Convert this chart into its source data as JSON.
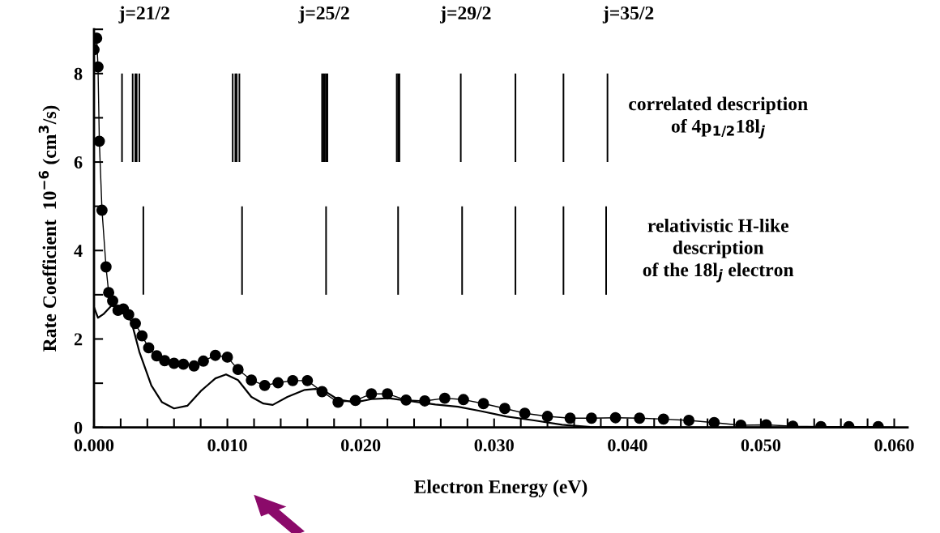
{
  "chart_data": {
    "type": "line",
    "xlabel": "Electron Energy (eV)",
    "ylabel": "Rate Coefficient  10$^{−6}$ (cm$^{3}$/s)",
    "xlim": [
      0,
      0.061
    ],
    "ylim": [
      0,
      9
    ],
    "xticks": [
      {
        "value": 0,
        "label": "0.000"
      },
      {
        "value": 0.002,
        "label": null
      },
      {
        "value": 0.004,
        "label": null
      },
      {
        "value": 0.006,
        "label": null
      },
      {
        "value": 0.008,
        "label": null
      },
      {
        "value": 0.01,
        "label": "0.010"
      },
      {
        "value": 0.012,
        "label": null
      },
      {
        "value": 0.014,
        "label": null
      },
      {
        "value": 0.016,
        "label": null
      },
      {
        "value": 0.018,
        "label": null
      },
      {
        "value": 0.02,
        "label": "0.020"
      },
      {
        "value": 0.022,
        "label": null
      },
      {
        "value": 0.024,
        "label": null
      },
      {
        "value": 0.026,
        "label": null
      },
      {
        "value": 0.028,
        "label": null
      },
      {
        "value": 0.03,
        "label": "0.030"
      },
      {
        "value": 0.032,
        "label": null
      },
      {
        "value": 0.034,
        "label": null
      },
      {
        "value": 0.036,
        "label": null
      },
      {
        "value": 0.038,
        "label": null
      },
      {
        "value": 0.04,
        "label": "0.040"
      },
      {
        "value": 0.042,
        "label": null
      },
      {
        "value": 0.044,
        "label": null
      },
      {
        "value": 0.046,
        "label": null
      },
      {
        "value": 0.048,
        "label": null
      },
      {
        "value": 0.05,
        "label": "0.050"
      },
      {
        "value": 0.052,
        "label": null
      },
      {
        "value": 0.054,
        "label": null
      },
      {
        "value": 0.056,
        "label": null
      },
      {
        "value": 0.058,
        "label": null
      },
      {
        "value": 0.06,
        "label": "0.060"
      }
    ],
    "yticks": [
      0,
      {
        "value": 1,
        "label": null
      },
      2,
      {
        "value": 3,
        "label": null
      },
      4,
      {
        "value": 5,
        "label": null
      },
      6,
      {
        "value": 7,
        "label": null
      },
      8,
      {
        "value": 9,
        "label": null
      }
    ],
    "grid": false,
    "legend": false,
    "annotations": [
      "j=21/2",
      "j=25/2",
      "j=29/2",
      "j=35/2"
    ],
    "series": [
      {
        "color": "#000000",
        "marker": "circle",
        "line_style": "solid",
        "x": [
          0.0,
          0.0002,
          0.0003,
          0.0004,
          0.0006,
          0.0009,
          0.0011,
          0.0014,
          0.0018,
          0.0022,
          0.0026,
          0.0031,
          0.0036,
          0.0041,
          0.0047,
          0.0053,
          0.006,
          0.0067,
          0.0075,
          0.0082,
          0.0091,
          0.01,
          0.0108,
          0.0118,
          0.0128,
          0.0138,
          0.0149,
          0.016,
          0.0171,
          0.0183,
          0.0196,
          0.0208,
          0.022,
          0.0234,
          0.0248,
          0.0263,
          0.0277,
          0.0292,
          0.0308,
          0.0323,
          0.034,
          0.0357,
          0.0373,
          0.0391,
          0.0409,
          0.0427,
          0.0446,
          0.0465,
          0.0485,
          0.0504,
          0.0524,
          0.0545,
          0.0566,
          0.0588
        ],
        "values": [
          8.54,
          8.8,
          8.15,
          6.47,
          4.91,
          3.63,
          3.05,
          2.86,
          2.65,
          2.68,
          2.55,
          2.35,
          2.07,
          1.8,
          1.62,
          1.51,
          1.45,
          1.43,
          1.39,
          1.5,
          1.63,
          1.59,
          1.31,
          1.07,
          0.95,
          1.01,
          1.06,
          1.06,
          0.81,
          0.57,
          0.61,
          0.76,
          0.76,
          0.62,
          0.6,
          0.66,
          0.63,
          0.54,
          0.43,
          0.32,
          0.25,
          0.21,
          0.21,
          0.22,
          0.21,
          0.19,
          0.16,
          0.11,
          0.05,
          0.06,
          0.03,
          0.02,
          0.02,
          0.02
        ]
      },
      {
        "color": "#000000",
        "marker": "none",
        "line_style": "solid",
        "x": [
          0.0,
          0.0003,
          0.0007,
          0.0013,
          0.002,
          0.0028,
          0.0034,
          0.0043,
          0.0051,
          0.006,
          0.007,
          0.008,
          0.0091,
          0.0099,
          0.0108,
          0.0118,
          0.0127,
          0.0134,
          0.0145,
          0.0158,
          0.0166,
          0.0173,
          0.0183,
          0.0196,
          0.0208,
          0.0221,
          0.0236,
          0.0256,
          0.0273,
          0.029,
          0.0309,
          0.033,
          0.0351,
          0.0372,
          0.045,
          0.06
        ],
        "values": [
          2.72,
          2.48,
          2.56,
          2.75,
          2.7,
          2.4,
          1.71,
          0.95,
          0.57,
          0.43,
          0.49,
          0.82,
          1.11,
          1.2,
          1.07,
          0.69,
          0.54,
          0.51,
          0.69,
          0.85,
          0.87,
          0.82,
          0.63,
          0.57,
          0.64,
          0.66,
          0.6,
          0.52,
          0.47,
          0.37,
          0.25,
          0.16,
          0.06,
          0.01,
          0.0,
          0.0
        ]
      },
      {
        "type": "bar",
        "name": "correlated description\nof 4p$_{1/2}$18l$_{j}$",
        "color": "#000000",
        "x": [
          0.0021,
          0.0029,
          0.0031,
          0.0032,
          0.0034,
          0.0104,
          0.0106,
          0.0107,
          0.0109,
          0.0171,
          0.0172,
          0.0173,
          0.0174,
          0.0175,
          0.0227,
          0.0228,
          0.0229,
          0.0275,
          0.0316,
          0.0352,
          0.0385
        ],
        "base": [
          6,
          6,
          6,
          6,
          6,
          6,
          6,
          6,
          6,
          6,
          6,
          6,
          6,
          6,
          6,
          6,
          6,
          6,
          6,
          6,
          6
        ],
        "values": [
          2,
          2,
          2,
          2,
          2,
          2,
          2,
          2,
          2,
          2,
          2,
          2,
          2,
          2,
          2,
          2,
          2,
          2,
          2,
          2,
          2
        ]
      },
      {
        "type": "bar",
        "name": "relativistic H-like\ndescription\nof the 18l$_{j}$ electron",
        "color": "#000000",
        "x": [
          0.0037,
          0.0111,
          0.0174,
          0.0228,
          0.0276,
          0.0316,
          0.0352,
          0.0384
        ],
        "base": [
          3,
          3,
          3,
          3,
          3,
          3,
          3,
          3
        ],
        "values": [
          2,
          2,
          2,
          2,
          2,
          2,
          2,
          2
        ]
      }
    ]
  }
}
